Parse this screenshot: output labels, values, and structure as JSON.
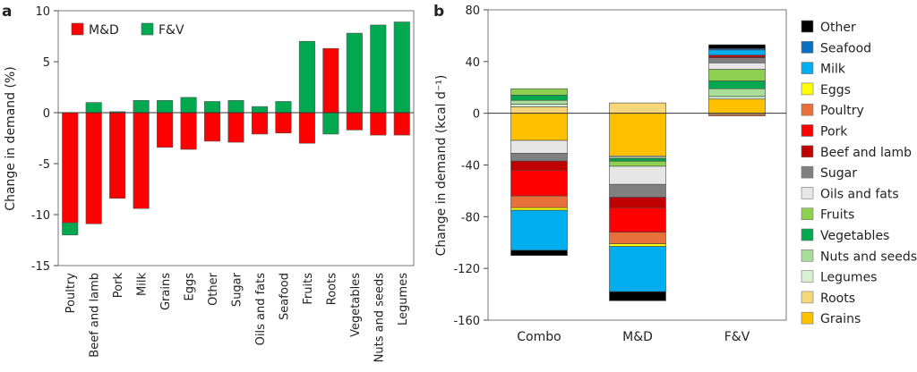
{
  "chart_data": [
    {
      "panel": "a",
      "type": "bar",
      "stacked": true,
      "ylabel": "Change in demand (%)",
      "ylim": [
        -15,
        10
      ],
      "yticks": [
        10,
        5,
        0,
        -5,
        -10,
        -15
      ],
      "legend": "top-left",
      "categories": [
        "Poultry",
        "Beef and lamb",
        "Pork",
        "Milk",
        "Grains",
        "Eggs",
        "Other",
        "Sugar",
        "Oils and fats",
        "Seafood",
        "Fruits",
        "Roots",
        "Vegetables",
        "Nuts and seeds",
        "Legumes"
      ],
      "series": [
        {
          "name": "M&D",
          "color": "#ff0000",
          "values": [
            -10.8,
            -10.9,
            -8.4,
            -9.4,
            -3.4,
            -3.6,
            -2.8,
            -2.9,
            -2.1,
            -2.0,
            -3.0,
            6.3,
            -1.7,
            -2.2,
            -2.2
          ]
        },
        {
          "name": "F&V",
          "color": "#00a84f",
          "values": [
            -1.2,
            1.0,
            0.1,
            1.2,
            1.2,
            1.5,
            1.1,
            1.2,
            0.6,
            1.1,
            7.0,
            -2.1,
            7.8,
            8.6,
            8.9
          ]
        }
      ]
    },
    {
      "panel": "b",
      "type": "bar",
      "stacked": true,
      "ylabel": "Change in demand (kcal d⁻¹)",
      "ylim": [
        -160,
        80
      ],
      "yticks": [
        80,
        40,
        0,
        -40,
        -80,
        -120,
        -160
      ],
      "legend": "right",
      "categories": [
        "Combo",
        "M&D",
        "F&V"
      ],
      "series": [
        {
          "name": "Other",
          "color": "#000000",
          "values": [
            -4,
            -7,
            3
          ]
        },
        {
          "name": "Seafood",
          "color": "#0b6fc1",
          "values": [
            0,
            0,
            1
          ]
        },
        {
          "name": "Milk",
          "color": "#00aeef",
          "values": [
            -31,
            -35,
            4
          ]
        },
        {
          "name": "Eggs",
          "color": "#ffff00",
          "values": [
            -2,
            -2,
            0
          ]
        },
        {
          "name": "Poultry",
          "color": "#e8703a",
          "values": [
            -9,
            -9,
            -1
          ]
        },
        {
          "name": "Pork",
          "color": "#ff0000",
          "values": [
            -20,
            -19,
            1
          ]
        },
        {
          "name": "Beef and lamb",
          "color": "#c00000",
          "values": [
            -7,
            -8,
            1
          ]
        },
        {
          "name": "Sugar",
          "color": "#808080",
          "values": [
            -6,
            -10,
            4
          ]
        },
        {
          "name": "Oils and fats",
          "color": "#e6e6e6",
          "values": [
            -10,
            -14,
            5
          ]
        },
        {
          "name": "Fruits",
          "color": "#8dd050",
          "values": [
            5,
            -4,
            9
          ]
        },
        {
          "name": "Vegetables",
          "color": "#00a84f",
          "values": [
            4,
            -2,
            6
          ]
        },
        {
          "name": "Nuts and seeds",
          "color": "#a9dd9a",
          "values": [
            3,
            -1,
            6
          ]
        },
        {
          "name": "Legumes",
          "color": "#d9f0d3",
          "values": [
            2,
            -1,
            2
          ]
        },
        {
          "name": "Roots",
          "color": "#f5d77a",
          "values": [
            5,
            8,
            -1
          ]
        },
        {
          "name": "Grains",
          "color": "#ffc000",
          "values": [
            -21,
            -33,
            11
          ]
        }
      ]
    }
  ],
  "labels": {
    "panel_a": "a",
    "panel_b": "b"
  }
}
